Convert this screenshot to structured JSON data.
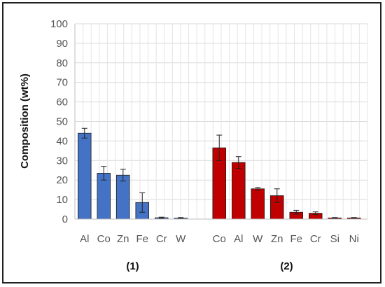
{
  "chart_data": {
    "type": "bar",
    "title": "",
    "xlabel": "",
    "ylabel": "Composition (wt%)",
    "ylim": [
      0,
      100
    ],
    "y_ticks": [
      "0",
      "10",
      "20",
      "30",
      "40",
      "50",
      "60",
      "70",
      "80",
      "90",
      "100"
    ],
    "grid": true,
    "error_bars": true,
    "groups": [
      {
        "label": "(1)",
        "color": "#4472C4",
        "categories": [
          "Al",
          "Co",
          "Zn",
          "Fe",
          "Cr",
          "W"
        ],
        "values": [
          44,
          23.5,
          22.5,
          8.5,
          0.7,
          0.5
        ],
        "errors": [
          2.5,
          3.5,
          3,
          5,
          0.3,
          0.3
        ]
      },
      {
        "label": "(2)",
        "color": "#C00000",
        "categories": [
          "Co",
          "Al",
          "W",
          "Zn",
          "Fe",
          "Cr",
          "Si",
          "Ni"
        ],
        "values": [
          36.5,
          29,
          15.5,
          12,
          3.5,
          3,
          0.6,
          0.6
        ],
        "errors": [
          6.5,
          3,
          0.7,
          3.5,
          1,
          0.7,
          0.2,
          0.2
        ]
      }
    ]
  }
}
